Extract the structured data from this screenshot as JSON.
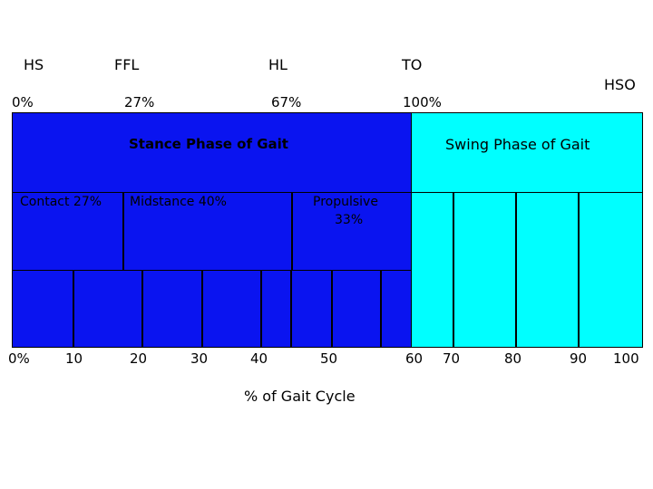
{
  "events": {
    "hs": "HS",
    "ffl": "FFL",
    "hl": "HL",
    "to": "TO",
    "hso": "HSO"
  },
  "event_percents": {
    "hs": "0%",
    "ffl": "27%",
    "hl": "67%",
    "to": "100%"
  },
  "phases": {
    "stance": {
      "title": "Stance Phase of Gait",
      "color": "#0a14f0"
    },
    "swing": {
      "title": "Swing Phase of Gait",
      "color": "#00ffff"
    }
  },
  "subphases": {
    "contact": "Contact 27%",
    "midstance": "Midstance 40%",
    "propulsive_line1": "Propulsive",
    "propulsive_line2": "33%"
  },
  "axis": {
    "ticks": [
      "0%",
      "10",
      "20",
      "30",
      "40",
      "50",
      "60",
      "70",
      "80",
      "90",
      "100"
    ],
    "title": "% of Gait Cycle"
  }
}
